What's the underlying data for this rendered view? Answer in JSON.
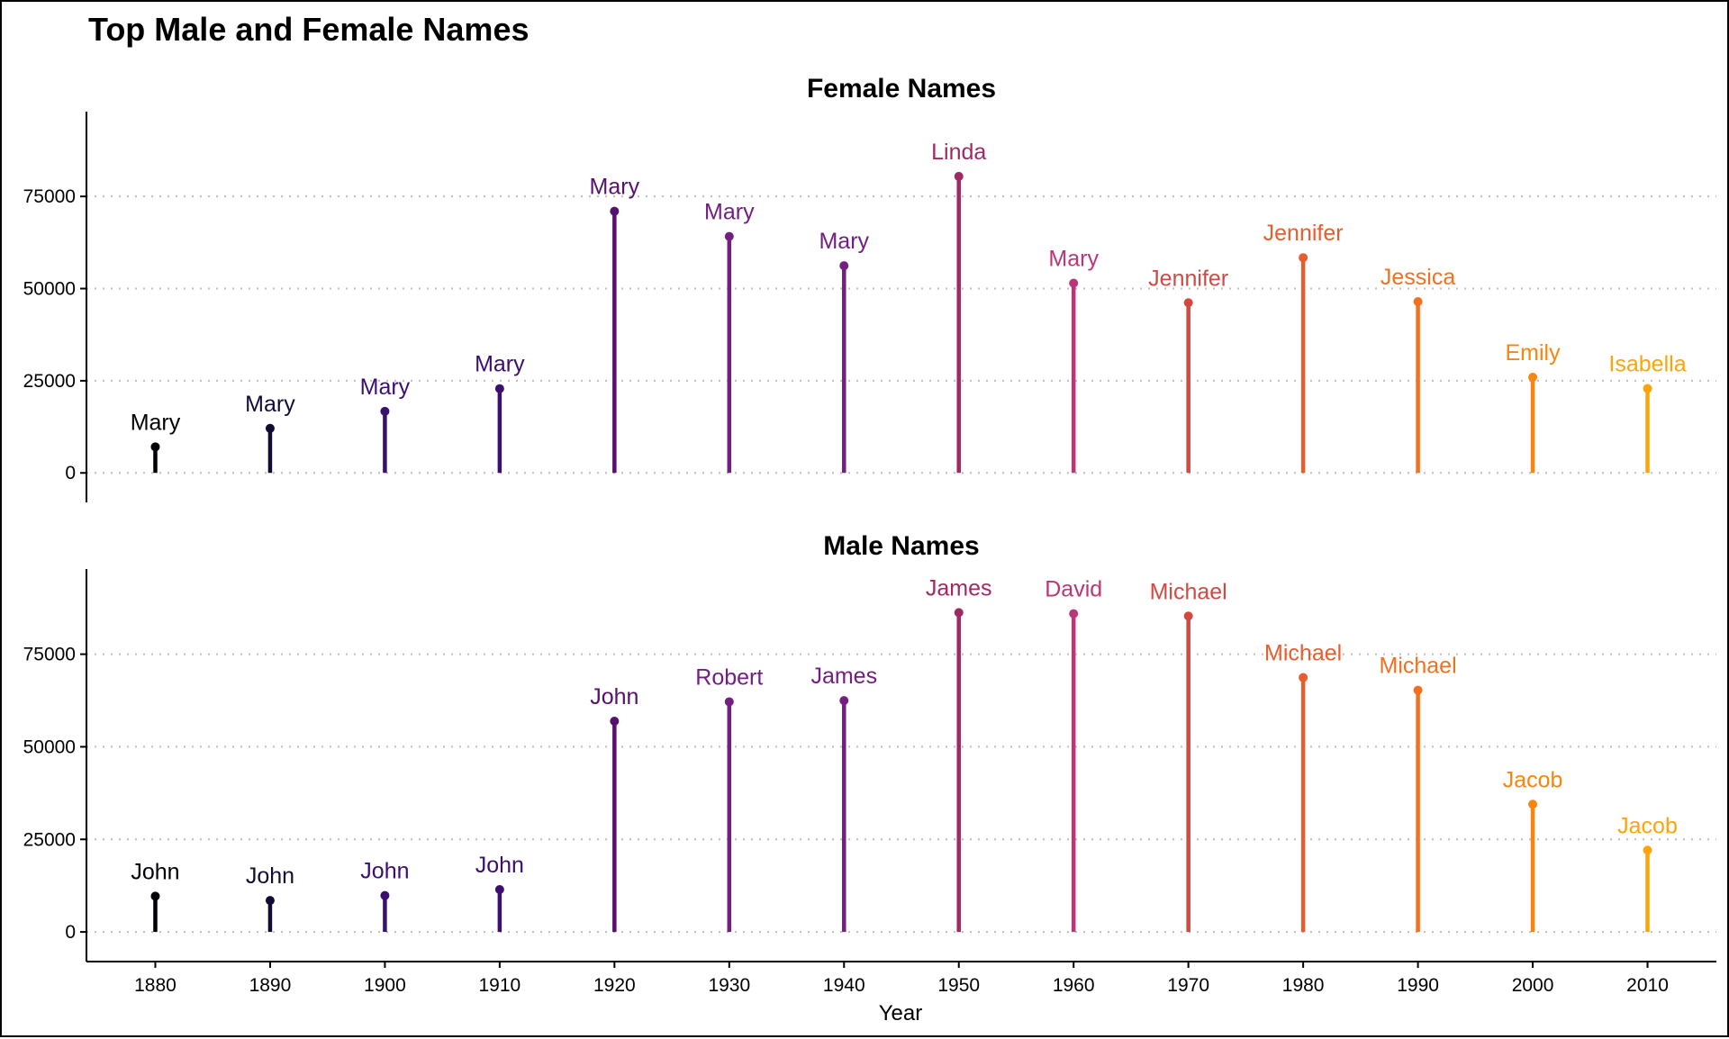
{
  "chart_data": {
    "type": "lollipop",
    "title": "Top Male and Female Names",
    "xlabel": "Year",
    "x_ticks": [
      1880,
      1890,
      1900,
      1910,
      1920,
      1930,
      1940,
      1950,
      1960,
      1970,
      1980,
      1990,
      2000,
      2010
    ],
    "xlim": [
      1874,
      2016
    ],
    "colors": [
      "#000004",
      "#140b35",
      "#3b0f6f",
      "#3b0f6f",
      "#56106e",
      "#721f81",
      "#721f81",
      "#9f2a63",
      "#b73779",
      "#d44842",
      "#e75e2e",
      "#f1711f",
      "#f8850f",
      "#fca50a"
    ],
    "panels": [
      {
        "title": "Female Names",
        "ylim": [
          -8000,
          98000
        ],
        "y_ticks": [
          0,
          25000,
          50000,
          75000
        ],
        "y_tick_labels": [
          "0",
          "25000",
          "50000",
          "75000"
        ],
        "grid": true,
        "points": [
          {
            "year": 1880,
            "name": "Mary",
            "value": 7065
          },
          {
            "year": 1890,
            "name": "Mary",
            "value": 12078
          },
          {
            "year": 1900,
            "name": "Mary",
            "value": 16707
          },
          {
            "year": 1910,
            "name": "Mary",
            "value": 22848
          },
          {
            "year": 1920,
            "name": "Mary",
            "value": 70975
          },
          {
            "year": 1930,
            "name": "Mary",
            "value": 64146
          },
          {
            "year": 1940,
            "name": "Mary",
            "value": 56199
          },
          {
            "year": 1950,
            "name": "Linda",
            "value": 80432
          },
          {
            "year": 1960,
            "name": "Mary",
            "value": 51474
          },
          {
            "year": 1970,
            "name": "Jennifer",
            "value": 46160
          },
          {
            "year": 1980,
            "name": "Jennifer",
            "value": 58385
          },
          {
            "year": 1990,
            "name": "Jessica",
            "value": 46466
          },
          {
            "year": 2000,
            "name": "Emily",
            "value": 25953
          },
          {
            "year": 2010,
            "name": "Isabella",
            "value": 22883
          }
        ]
      },
      {
        "title": "Male Names",
        "ylim": [
          -8000,
          98000
        ],
        "y_ticks": [
          0,
          25000,
          50000,
          75000
        ],
        "y_tick_labels": [
          "0",
          "25000",
          "50000",
          "75000"
        ],
        "grid": true,
        "points": [
          {
            "year": 1880,
            "name": "John",
            "value": 9655
          },
          {
            "year": 1890,
            "name": "John",
            "value": 8502
          },
          {
            "year": 1900,
            "name": "John",
            "value": 9829
          },
          {
            "year": 1910,
            "name": "John",
            "value": 11450
          },
          {
            "year": 1920,
            "name": "John",
            "value": 56914
          },
          {
            "year": 1930,
            "name": "Robert",
            "value": 62149
          },
          {
            "year": 1940,
            "name": "James",
            "value": 62477
          },
          {
            "year": 1950,
            "name": "James",
            "value": 86238
          },
          {
            "year": 1960,
            "name": "David",
            "value": 85929
          },
          {
            "year": 1970,
            "name": "Michael",
            "value": 85291
          },
          {
            "year": 1980,
            "name": "Michael",
            "value": 68693
          },
          {
            "year": 1990,
            "name": "Michael",
            "value": 65282
          },
          {
            "year": 2000,
            "name": "Jacob",
            "value": 34471
          },
          {
            "year": 2010,
            "name": "Jacob",
            "value": 22082
          }
        ]
      }
    ]
  }
}
